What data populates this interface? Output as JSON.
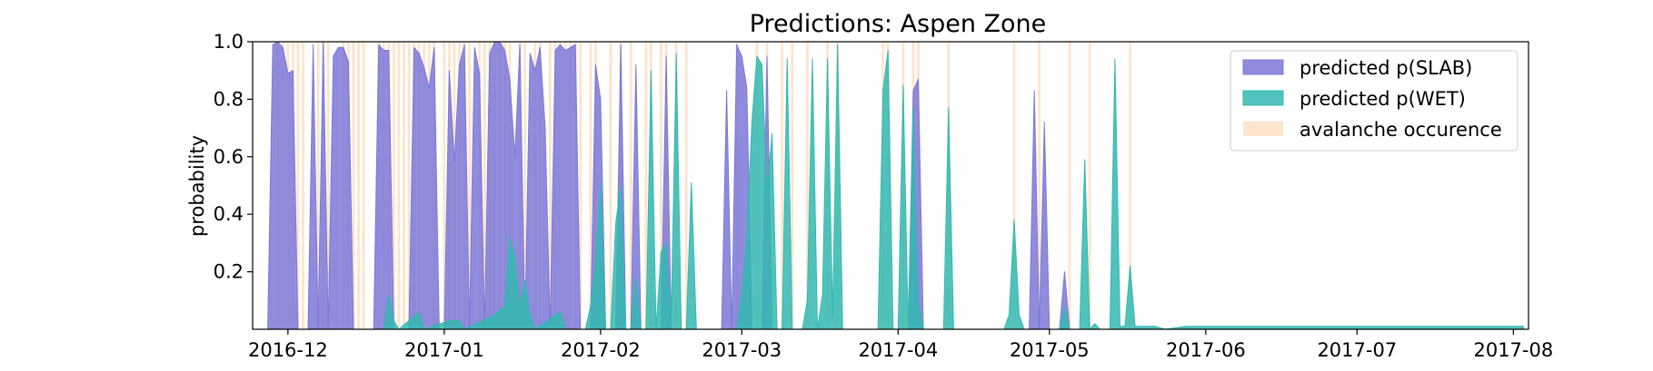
{
  "chart_data": {
    "type": "area",
    "title": "Predictions: Aspen Zone",
    "xlabel": "",
    "ylabel": "probability",
    "ylim": [
      0,
      1.0
    ],
    "xlim": [
      "2016-11-24",
      "2017-08-04"
    ],
    "x_ticks": [
      "2016-12",
      "2017-01",
      "2017-02",
      "2017-03",
      "2017-04",
      "2017-05",
      "2017-06",
      "2017-07",
      "2017-08"
    ],
    "y_ticks": [
      "0.2",
      "0.4",
      "0.6",
      "0.8",
      "1.0"
    ],
    "grid": false,
    "legend_position": "top-right",
    "colors": {
      "slab": "#7b78d8",
      "wet": "#33b8b0",
      "avalanche": "#fde4cc"
    },
    "avalanche_days": [
      "2016-11-29",
      "2016-11-30",
      "2016-12-01",
      "2016-12-02",
      "2016-12-03",
      "2016-12-04",
      "2016-12-07",
      "2016-12-08",
      "2016-12-09",
      "2016-12-12",
      "2016-12-13",
      "2016-12-14",
      "2016-12-15",
      "2016-12-16",
      "2016-12-19",
      "2016-12-20",
      "2016-12-21",
      "2016-12-22",
      "2016-12-23",
      "2016-12-24",
      "2016-12-25",
      "2016-12-26",
      "2016-12-27",
      "2016-12-28",
      "2016-12-29",
      "2016-12-30",
      "2017-01-01",
      "2017-01-02",
      "2017-01-03",
      "2017-01-04",
      "2017-01-05",
      "2017-01-06",
      "2017-01-08",
      "2017-01-09",
      "2017-01-10",
      "2017-01-11",
      "2017-01-12",
      "2017-01-13",
      "2017-01-14",
      "2017-01-16",
      "2017-01-17",
      "2017-01-19",
      "2017-01-20",
      "2017-01-22",
      "2017-01-23",
      "2017-01-24",
      "2017-01-25",
      "2017-01-26",
      "2017-01-27",
      "2017-01-28",
      "2017-01-30",
      "2017-01-31",
      "2017-02-03",
      "2017-02-05",
      "2017-02-07",
      "2017-02-10",
      "2017-02-11",
      "2017-02-13",
      "2017-02-14",
      "2017-02-16",
      "2017-02-18",
      "2017-02-28",
      "2017-03-04",
      "2017-03-06",
      "2017-03-09",
      "2017-03-11",
      "2017-03-14",
      "2017-03-18",
      "2017-03-20",
      "2017-03-29",
      "2017-03-30",
      "2017-04-02",
      "2017-04-04",
      "2017-04-05",
      "2017-04-11",
      "2017-04-24",
      "2017-04-29",
      "2017-05-05",
      "2017-05-09",
      "2017-05-17"
    ],
    "series": [
      {
        "name": "predicted p(SLAB)",
        "points": [
          [
            "2016-11-27",
            0
          ],
          [
            "2016-11-28",
            0.99
          ],
          [
            "2016-11-29",
            1.0
          ],
          [
            "2016-11-30",
            0.98
          ],
          [
            "2016-12-01",
            0.89
          ],
          [
            "2016-12-02",
            0.9
          ],
          [
            "2016-12-03",
            0
          ],
          [
            "2016-12-05",
            0
          ],
          [
            "2016-12-06",
            0.99
          ],
          [
            "2016-12-07",
            0
          ],
          [
            "2016-12-08",
            1.0
          ],
          [
            "2016-12-09",
            0
          ],
          [
            "2016-12-10",
            0.95
          ],
          [
            "2016-12-11",
            0.98
          ],
          [
            "2016-12-12",
            0.98
          ],
          [
            "2016-12-13",
            0.93
          ],
          [
            "2016-12-14",
            0
          ],
          [
            "2016-12-18",
            0
          ],
          [
            "2016-12-19",
            0.99
          ],
          [
            "2016-12-20",
            0.97
          ],
          [
            "2016-12-21",
            0.97
          ],
          [
            "2016-12-22",
            0
          ],
          [
            "2016-12-25",
            0
          ],
          [
            "2016-12-26",
            0.98
          ],
          [
            "2016-12-27",
            0.96
          ],
          [
            "2016-12-28",
            0.91
          ],
          [
            "2016-12-29",
            0.84
          ],
          [
            "2016-12-30",
            0.98
          ],
          [
            "2016-12-31",
            0
          ],
          [
            "2017-01-01",
            0
          ],
          [
            "2017-01-02",
            0.9
          ],
          [
            "2017-01-03",
            0.58
          ],
          [
            "2017-01-04",
            0.92
          ],
          [
            "2017-01-05",
            0.99
          ],
          [
            "2017-01-06",
            0
          ],
          [
            "2017-01-07",
            0.98
          ],
          [
            "2017-01-08",
            0.89
          ],
          [
            "2017-01-09",
            0
          ],
          [
            "2017-01-10",
            0.96
          ],
          [
            "2017-01-11",
            1.0
          ],
          [
            "2017-01-12",
            1.0
          ],
          [
            "2017-01-13",
            0.97
          ],
          [
            "2017-01-14",
            0.87
          ],
          [
            "2017-01-15",
            0.6
          ],
          [
            "2017-01-16",
            0.99
          ],
          [
            "2017-01-17",
            0
          ],
          [
            "2017-01-18",
            0.96
          ],
          [
            "2017-01-19",
            0.9
          ],
          [
            "2017-01-20",
            0.98
          ],
          [
            "2017-01-21",
            0.7
          ],
          [
            "2017-01-22",
            0
          ],
          [
            "2017-01-23",
            0.97
          ],
          [
            "2017-01-24",
            0.99
          ],
          [
            "2017-01-25",
            0.97
          ],
          [
            "2017-01-26",
            0.98
          ],
          [
            "2017-01-27",
            0.99
          ],
          [
            "2017-01-28",
            0
          ],
          [
            "2017-01-30",
            0
          ],
          [
            "2017-01-31",
            0.92
          ],
          [
            "2017-02-01",
            0.8
          ],
          [
            "2017-02-02",
            0
          ],
          [
            "2017-02-04",
            0
          ],
          [
            "2017-02-05",
            0.99
          ],
          [
            "2017-02-06",
            0
          ],
          [
            "2017-02-07",
            0
          ],
          [
            "2017-02-08",
            0.92
          ],
          [
            "2017-02-09",
            0
          ],
          [
            "2017-02-13",
            0
          ],
          [
            "2017-02-14",
            0.95
          ],
          [
            "2017-02-15",
            0
          ],
          [
            "2017-02-25",
            0
          ],
          [
            "2017-02-26",
            0.83
          ],
          [
            "2017-02-27",
            0
          ],
          [
            "2017-02-28",
            0.99
          ],
          [
            "2017-03-01",
            0.95
          ],
          [
            "2017-03-02",
            0.84
          ],
          [
            "2017-03-03",
            0
          ],
          [
            "2017-03-05",
            0
          ],
          [
            "2017-03-06",
            0.95
          ],
          [
            "2017-03-07",
            0
          ],
          [
            "2017-04-03",
            0
          ],
          [
            "2017-04-04",
            0.83
          ],
          [
            "2017-04-05",
            0.87
          ],
          [
            "2017-04-06",
            0
          ],
          [
            "2017-04-27",
            0
          ],
          [
            "2017-04-28",
            0.83
          ],
          [
            "2017-04-29",
            0
          ],
          [
            "2017-04-30",
            0.72
          ],
          [
            "2017-05-01",
            0
          ],
          [
            "2017-05-03",
            0
          ],
          [
            "2017-05-04",
            0.2
          ],
          [
            "2017-05-05",
            0
          ]
        ]
      },
      {
        "name": "predicted p(WET)",
        "points": [
          [
            "2016-11-24",
            0
          ],
          [
            "2016-12-20",
            0
          ],
          [
            "2016-12-21",
            0.12
          ],
          [
            "2016-12-22",
            0.03
          ],
          [
            "2016-12-23",
            0
          ],
          [
            "2016-12-27",
            0.06
          ],
          [
            "2016-12-28",
            0
          ],
          [
            "2017-01-02",
            0.03
          ],
          [
            "2017-01-04",
            0.03
          ],
          [
            "2017-01-05",
            0
          ],
          [
            "2017-01-11",
            0.05
          ],
          [
            "2017-01-13",
            0.08
          ],
          [
            "2017-01-14",
            0.32
          ],
          [
            "2017-01-15",
            0.25
          ],
          [
            "2017-01-16",
            0.08
          ],
          [
            "2017-01-17",
            0.17
          ],
          [
            "2017-01-18",
            0.05
          ],
          [
            "2017-01-19",
            0
          ],
          [
            "2017-01-24",
            0.06
          ],
          [
            "2017-01-25",
            0
          ],
          [
            "2017-01-29",
            0
          ],
          [
            "2017-01-30",
            0.08
          ],
          [
            "2017-01-31",
            0.23
          ],
          [
            "2017-02-01",
            0.51
          ],
          [
            "2017-02-02",
            0
          ],
          [
            "2017-02-03",
            0
          ],
          [
            "2017-02-04",
            0.37
          ],
          [
            "2017-02-05",
            0.5
          ],
          [
            "2017-02-06",
            0
          ],
          [
            "2017-02-07",
            0
          ],
          [
            "2017-02-08",
            0.18
          ],
          [
            "2017-02-09",
            0
          ],
          [
            "2017-02-10",
            0
          ],
          [
            "2017-02-11",
            0.9
          ],
          [
            "2017-02-12",
            0
          ],
          [
            "2017-02-13",
            0.27
          ],
          [
            "2017-02-14",
            0.3
          ],
          [
            "2017-02-15",
            0.03
          ],
          [
            "2017-02-16",
            0.96
          ],
          [
            "2017-02-17",
            0
          ],
          [
            "2017-02-18",
            0
          ],
          [
            "2017-02-19",
            0.51
          ],
          [
            "2017-02-20",
            0
          ],
          [
            "2017-02-28",
            0
          ],
          [
            "2017-03-01",
            0.12
          ],
          [
            "2017-03-02",
            0.32
          ],
          [
            "2017-03-03",
            0.72
          ],
          [
            "2017-03-04",
            0.95
          ],
          [
            "2017-03-05",
            0.92
          ],
          [
            "2017-03-06",
            0.48
          ],
          [
            "2017-03-07",
            0.68
          ],
          [
            "2017-03-08",
            0
          ],
          [
            "2017-03-09",
            0
          ],
          [
            "2017-03-10",
            0.94
          ],
          [
            "2017-03-11",
            0
          ],
          [
            "2017-03-13",
            0
          ],
          [
            "2017-03-14",
            0.1
          ],
          [
            "2017-03-15",
            0.94
          ],
          [
            "2017-03-16",
            0
          ],
          [
            "2017-03-17",
            0.12
          ],
          [
            "2017-03-18",
            0.94
          ],
          [
            "2017-03-19",
            0.04
          ],
          [
            "2017-03-20",
            0.99
          ],
          [
            "2017-03-21",
            0
          ],
          [
            "2017-03-28",
            0
          ],
          [
            "2017-03-29",
            0.83
          ],
          [
            "2017-03-30",
            0.97
          ],
          [
            "2017-03-31",
            0
          ],
          [
            "2017-04-01",
            0
          ],
          [
            "2017-04-02",
            0.85
          ],
          [
            "2017-04-03",
            0
          ],
          [
            "2017-04-04",
            0.77
          ],
          [
            "2017-04-05",
            0.1
          ],
          [
            "2017-04-06",
            0
          ],
          [
            "2017-04-10",
            0
          ],
          [
            "2017-04-11",
            0.77
          ],
          [
            "2017-04-12",
            0
          ],
          [
            "2017-04-22",
            0
          ],
          [
            "2017-04-23",
            0.05
          ],
          [
            "2017-04-24",
            0.38
          ],
          [
            "2017-04-25",
            0.05
          ],
          [
            "2017-04-26",
            0
          ],
          [
            "2017-05-03",
            0
          ],
          [
            "2017-05-04",
            0.08
          ],
          [
            "2017-05-05",
            0
          ],
          [
            "2017-05-07",
            0
          ],
          [
            "2017-05-08",
            0.59
          ],
          [
            "2017-05-09",
            0
          ],
          [
            "2017-05-10",
            0.02
          ],
          [
            "2017-05-11",
            0
          ],
          [
            "2017-05-13",
            0
          ],
          [
            "2017-05-14",
            0.94
          ],
          [
            "2017-05-15",
            0.01
          ],
          [
            "2017-05-16",
            0.01
          ],
          [
            "2017-05-17",
            0.22
          ],
          [
            "2017-05-18",
            0.01
          ],
          [
            "2017-05-22",
            0.01
          ],
          [
            "2017-05-24",
            0
          ],
          [
            "2017-05-28",
            0.01
          ],
          [
            "2017-08-03",
            0.01
          ]
        ]
      }
    ],
    "legend": [
      {
        "label": "predicted p(SLAB)",
        "color": "#7b78d8"
      },
      {
        "label": "predicted p(WET)",
        "color": "#33b8b0"
      },
      {
        "label": "avalanche occurence",
        "color": "#fde4cc"
      }
    ]
  }
}
